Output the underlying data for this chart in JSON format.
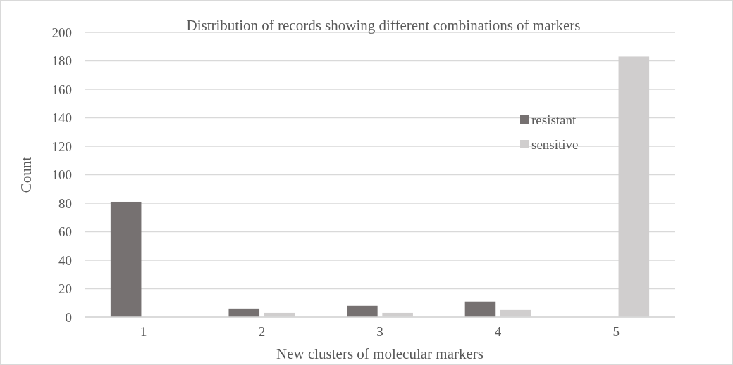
{
  "chart_data": {
    "type": "bar",
    "title": "Distribution of records showing different combinations of markers",
    "xlabel": "New clusters of molecular markers",
    "ylabel": "Count",
    "categories": [
      "1",
      "2",
      "3",
      "4",
      "5"
    ],
    "series": [
      {
        "name": "resistant",
        "color": "#767171",
        "values": [
          81,
          6,
          8,
          11,
          0
        ]
      },
      {
        "name": "sensitive",
        "color": "#d0cece",
        "values": [
          0,
          3,
          3,
          5,
          183
        ]
      }
    ],
    "ylim": [
      0,
      200
    ],
    "yticks": [
      0,
      20,
      40,
      60,
      80,
      100,
      120,
      140,
      160,
      180,
      200
    ],
    "grid": "y",
    "legend": "top right"
  }
}
